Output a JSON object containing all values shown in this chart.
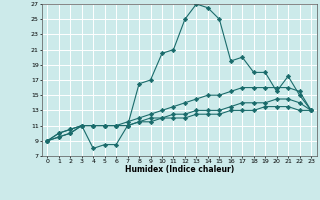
{
  "title": "",
  "xlabel": "Humidex (Indice chaleur)",
  "xlim": [
    -0.5,
    23.5
  ],
  "ylim": [
    7,
    27
  ],
  "xticks": [
    0,
    1,
    2,
    3,
    4,
    5,
    6,
    7,
    8,
    9,
    10,
    11,
    12,
    13,
    14,
    15,
    16,
    17,
    18,
    19,
    20,
    21,
    22,
    23
  ],
  "yticks": [
    7,
    9,
    11,
    13,
    15,
    17,
    19,
    21,
    23,
    25,
    27
  ],
  "bg_color": "#cceaea",
  "grid_color": "#ffffff",
  "line_color": "#1a6b6b",
  "lines": [
    {
      "x": [
        0,
        1,
        2,
        3,
        4,
        5,
        6,
        7,
        8,
        9,
        10,
        11,
        12,
        13,
        14,
        15,
        16,
        17,
        18,
        19,
        20,
        21,
        22,
        23
      ],
      "y": [
        9,
        10,
        10.5,
        11,
        8,
        8.5,
        8.5,
        11,
        16.5,
        17,
        20.5,
        21,
        25,
        27,
        26.5,
        25,
        19.5,
        20,
        18,
        18,
        15.5,
        17.5,
        15,
        13
      ]
    },
    {
      "x": [
        0,
        1,
        2,
        3,
        4,
        5,
        6,
        7,
        8,
        9,
        10,
        11,
        12,
        13,
        14,
        15,
        16,
        17,
        18,
        19,
        20,
        21,
        22,
        23
      ],
      "y": [
        9,
        10,
        10.5,
        11,
        11,
        11,
        11,
        11.5,
        12,
        12.5,
        13,
        13.5,
        14,
        14.5,
        15,
        15,
        15.5,
        16,
        16,
        16,
        16,
        16,
        15.5,
        13
      ]
    },
    {
      "x": [
        0,
        1,
        2,
        3,
        4,
        5,
        6,
        7,
        8,
        9,
        10,
        11,
        12,
        13,
        14,
        15,
        16,
        17,
        18,
        19,
        20,
        21,
        22,
        23
      ],
      "y": [
        9,
        9.5,
        10,
        11,
        11,
        11,
        11,
        11,
        11.5,
        12,
        12,
        12.5,
        12.5,
        13,
        13,
        13,
        13.5,
        14,
        14,
        14,
        14.5,
        14.5,
        14,
        13
      ]
    },
    {
      "x": [
        0,
        1,
        2,
        3,
        4,
        5,
        6,
        7,
        8,
        9,
        10,
        11,
        12,
        13,
        14,
        15,
        16,
        17,
        18,
        19,
        20,
        21,
        22,
        23
      ],
      "y": [
        9,
        9.5,
        10,
        11,
        11,
        11,
        11,
        11,
        11.5,
        11.5,
        12,
        12,
        12,
        12.5,
        12.5,
        12.5,
        13,
        13,
        13,
        13.5,
        13.5,
        13.5,
        13,
        13
      ]
    }
  ]
}
